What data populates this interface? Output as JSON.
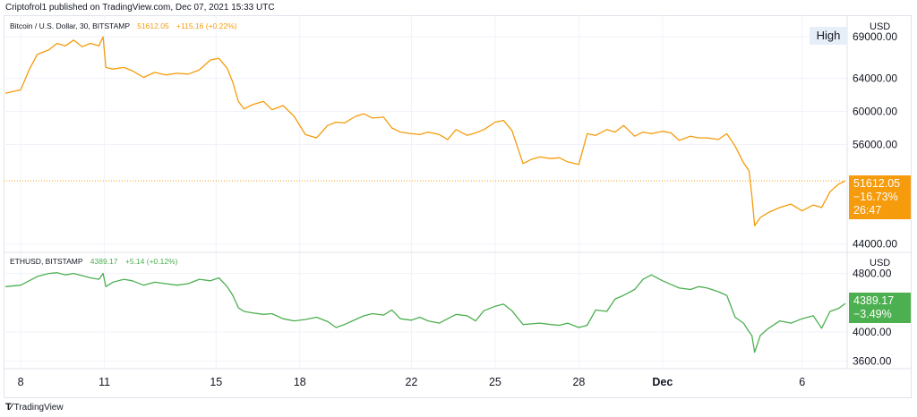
{
  "publish_note": "Criptofrol1 published on TradingView.com, Dec 07, 2021 15:33 UTC",
  "brand": "TradingView",
  "colors": {
    "btc": "#f59b0c",
    "eth": "#4caf50",
    "grid": "#f0f3fa",
    "axis_text": "#131722"
  },
  "chart_data": [
    {
      "type": "line",
      "legend": {
        "symbol": "Bitcoin / U.S. Dollar, 30, BITSTAMP",
        "value": "51612.05",
        "change": "+115.16 (+0.22%)"
      },
      "currency": "USD",
      "high_label": "High",
      "last_price": "51612.05",
      "last_pct": "−16.73%",
      "countdown": "26:47",
      "y_axis_labels": [
        "69000.00",
        "64000.00",
        "60000.00",
        "56000.00",
        "44000.00"
      ],
      "y_ticks": [
        69000,
        64000,
        60000,
        56000,
        44000
      ],
      "ylim": [
        43200,
        70200
      ],
      "x_day_range": [
        7.45,
        37.55
      ],
      "series": [
        {
          "x": [
            7.45,
            8.0,
            8.3,
            8.6,
            9.0,
            9.3,
            9.6,
            9.9,
            10.2,
            10.5,
            10.8,
            10.95,
            11.05,
            11.3,
            11.7,
            12.0,
            12.4,
            12.8,
            13.2,
            13.6,
            14.0,
            14.4,
            14.8,
            15.1,
            15.4,
            15.6,
            15.8,
            16.0,
            16.3,
            16.7,
            17.0,
            17.4,
            17.8,
            18.2,
            18.6,
            19.0,
            19.3,
            19.6,
            20.0,
            20.3,
            20.6,
            21.0,
            21.3,
            21.6,
            22.0,
            22.3,
            22.6,
            23.0,
            23.3,
            23.6,
            24.0,
            24.3,
            24.6,
            25.0,
            25.3,
            25.6,
            26.0,
            26.3,
            26.6,
            27.0,
            27.3,
            27.6,
            28.0,
            28.3,
            28.6,
            29.0,
            29.3,
            29.6,
            30.0,
            30.3,
            30.6,
            31.0,
            31.3,
            31.6,
            32.0,
            32.3,
            32.6,
            33.0,
            33.3,
            33.6,
            33.9,
            34.1,
            34.2,
            34.3,
            34.5,
            34.8,
            35.2,
            35.6,
            36.0,
            36.4,
            36.7,
            37.0,
            37.3,
            37.55
          ],
          "y": [
            62200,
            62600,
            65000,
            66900,
            67400,
            68200,
            67900,
            68600,
            67800,
            68200,
            67900,
            69000,
            65300,
            65100,
            65300,
            64900,
            64100,
            64700,
            64400,
            64600,
            64500,
            65000,
            66200,
            66400,
            65200,
            63500,
            61200,
            60300,
            60800,
            61200,
            60200,
            60700,
            59400,
            57200,
            56800,
            58300,
            58700,
            58600,
            59400,
            59700,
            59200,
            59300,
            58000,
            57500,
            57300,
            57200,
            57500,
            57200,
            56600,
            57800,
            57100,
            57400,
            57800,
            58700,
            58900,
            57700,
            53700,
            54200,
            54500,
            54300,
            54400,
            53900,
            53600,
            57300,
            57100,
            57800,
            57500,
            58300,
            57000,
            57500,
            57300,
            57600,
            57400,
            56500,
            57000,
            56800,
            56800,
            56600,
            57300,
            55800,
            53800,
            52800,
            49800,
            46200,
            47200,
            47800,
            48400,
            48800,
            48000,
            48700,
            48400,
            50300,
            51200,
            51612
          ]
        }
      ]
    },
    {
      "type": "line",
      "legend": {
        "symbol": "ETHUSD, BITSTAMP",
        "value": "4389.17",
        "change": "+5.14 (+0.12%)"
      },
      "currency": "USD",
      "last_price": "4389.17",
      "last_pct": "−3.49%",
      "y_axis_labels": [
        "4800.00",
        "4000.00",
        "3600.00"
      ],
      "y_ticks": [
        4800,
        4000,
        3600
      ],
      "ylim": [
        3520,
        4930
      ],
      "x_day_range": [
        7.45,
        37.55
      ],
      "series": [
        {
          "x": [
            7.45,
            8.0,
            8.3,
            8.6,
            9.0,
            9.3,
            9.6,
            9.9,
            10.2,
            10.5,
            10.8,
            10.95,
            11.05,
            11.3,
            11.7,
            12.0,
            12.4,
            12.8,
            13.2,
            13.6,
            14.0,
            14.4,
            14.8,
            15.1,
            15.4,
            15.6,
            15.8,
            16.0,
            16.3,
            16.7,
            17.0,
            17.4,
            17.8,
            18.2,
            18.6,
            19.0,
            19.3,
            19.6,
            20.0,
            20.3,
            20.6,
            21.0,
            21.3,
            21.6,
            22.0,
            22.3,
            22.6,
            23.0,
            23.3,
            23.6,
            24.0,
            24.3,
            24.6,
            25.0,
            25.3,
            25.6,
            26.0,
            26.3,
            26.6,
            27.0,
            27.3,
            27.6,
            28.0,
            28.3,
            28.6,
            29.0,
            29.3,
            29.6,
            30.0,
            30.3,
            30.6,
            31.0,
            31.3,
            31.6,
            32.0,
            32.3,
            32.6,
            33.0,
            33.3,
            33.6,
            33.9,
            34.1,
            34.2,
            34.3,
            34.5,
            34.8,
            35.2,
            35.6,
            36.0,
            36.4,
            36.7,
            37.0,
            37.3,
            37.55
          ],
          "y": [
            4620,
            4640,
            4700,
            4760,
            4800,
            4810,
            4780,
            4800,
            4770,
            4740,
            4720,
            4800,
            4620,
            4680,
            4720,
            4700,
            4640,
            4680,
            4660,
            4640,
            4660,
            4720,
            4700,
            4740,
            4620,
            4500,
            4330,
            4280,
            4260,
            4240,
            4250,
            4180,
            4150,
            4170,
            4200,
            4140,
            4060,
            4100,
            4170,
            4220,
            4250,
            4230,
            4300,
            4180,
            4160,
            4200,
            4150,
            4120,
            4180,
            4240,
            4220,
            4150,
            4290,
            4350,
            4380,
            4290,
            4100,
            4110,
            4120,
            4100,
            4090,
            4120,
            4060,
            4090,
            4300,
            4280,
            4450,
            4500,
            4580,
            4720,
            4780,
            4700,
            4650,
            4600,
            4580,
            4620,
            4600,
            4550,
            4500,
            4200,
            4120,
            4000,
            3950,
            3720,
            3950,
            4050,
            4150,
            4120,
            4180,
            4220,
            4050,
            4280,
            4320,
            4389
          ]
        }
      ]
    }
  ],
  "x_axis": {
    "labels": [
      "8",
      "11",
      "15",
      "18",
      "22",
      "25",
      "28",
      "Dec",
      "6"
    ],
    "days": [
      8,
      11,
      15,
      18,
      22,
      25,
      28,
      31,
      36
    ]
  }
}
